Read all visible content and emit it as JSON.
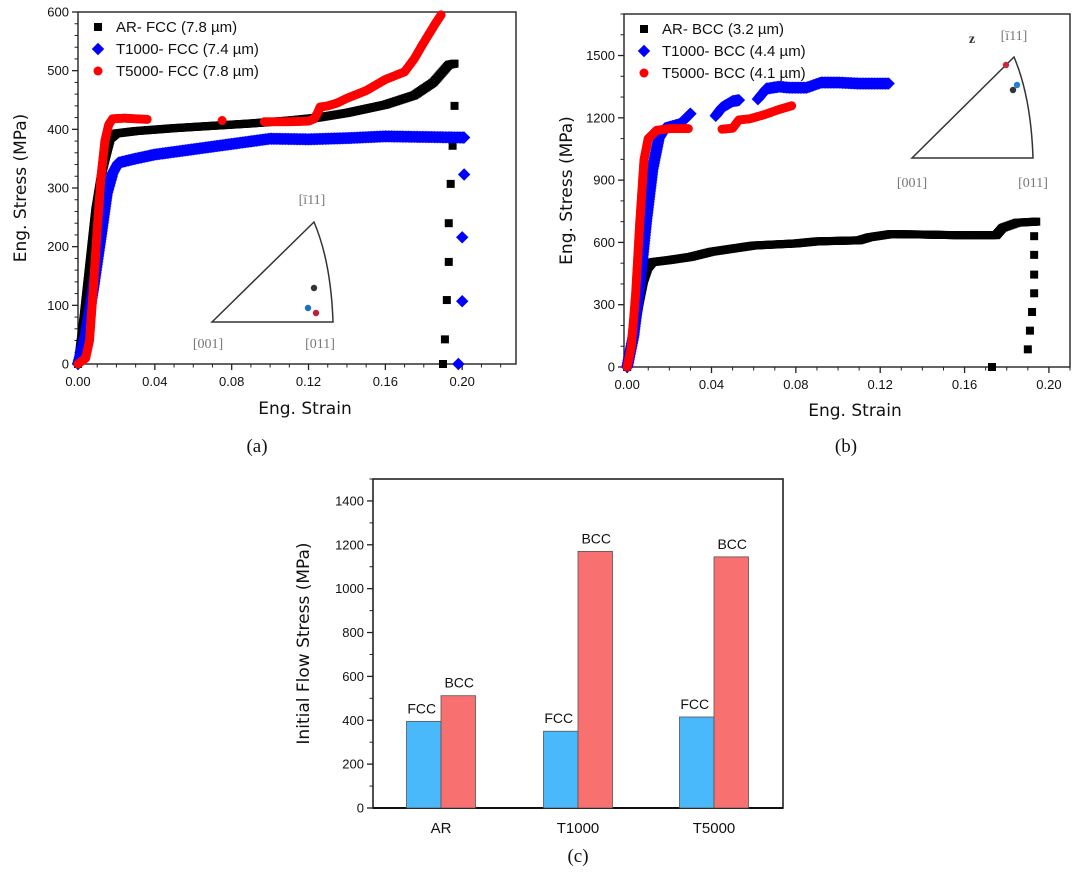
{
  "chart_data": [
    {
      "id": "a",
      "type": "scatter",
      "panel_label": "(a)",
      "title": "",
      "xlabel": "Eng. Strain",
      "ylabel": "Eng. Stress (MPa)",
      "xlim": [
        0,
        0.228
      ],
      "ylim": [
        0,
        600
      ],
      "xticks": [
        0.0,
        0.04,
        0.08,
        0.12,
        0.16,
        0.2
      ],
      "xtick_labels": [
        "0.00",
        "0.04",
        "0.08",
        "0.12",
        "0.16",
        "0.20"
      ],
      "xminor_step": 0.01,
      "yticks": [
        0,
        100,
        200,
        300,
        400,
        500,
        600
      ],
      "ytick_labels": [
        "0",
        "100",
        "200",
        "300",
        "400",
        "500",
        "600"
      ],
      "yminor_step": 20,
      "legend_position": "top-left",
      "series": [
        {
          "name": "AR- FCC (7.8 µm)",
          "marker": "square",
          "color": "#000000",
          "curve": [
            [
              0.0,
              0
            ],
            [
              0.003,
              80
            ],
            [
              0.006,
              170
            ],
            [
              0.009,
              260
            ],
            [
              0.012,
              320
            ],
            [
              0.015,
              360
            ],
            [
              0.017,
              385
            ],
            [
              0.02,
              393
            ],
            [
              0.03,
              397
            ],
            [
              0.05,
              402
            ],
            [
              0.07,
              406
            ],
            [
              0.09,
              410
            ],
            [
              0.11,
              415
            ],
            [
              0.125,
              420
            ],
            [
              0.14,
              428
            ],
            [
              0.16,
              442
            ],
            [
              0.175,
              458
            ],
            [
              0.185,
              480
            ],
            [
              0.193,
              510
            ],
            [
              0.196,
              512
            ]
          ],
          "fracture_points": [
            [
              0.196,
              440
            ],
            [
              0.195,
              372
            ],
            [
              0.194,
              307
            ],
            [
              0.193,
              240
            ],
            [
              0.193,
              174
            ],
            [
              0.192,
              109
            ],
            [
              0.191,
              42
            ],
            [
              0.19,
              0
            ]
          ]
        },
        {
          "name": "T1000- FCC (7.4 µm)",
          "marker": "diamond",
          "color": "#0000ff",
          "curve": [
            [
              0.0,
              0
            ],
            [
              0.004,
              50
            ],
            [
              0.008,
              130
            ],
            [
              0.012,
              220
            ],
            [
              0.015,
              290
            ],
            [
              0.018,
              325
            ],
            [
              0.021,
              343
            ],
            [
              0.03,
              350
            ],
            [
              0.04,
              357
            ],
            [
              0.06,
              366
            ],
            [
              0.08,
              375
            ],
            [
              0.1,
              384
            ],
            [
              0.12,
              383
            ],
            [
              0.14,
              385
            ],
            [
              0.16,
              388
            ],
            [
              0.18,
              387
            ],
            [
              0.2,
              386
            ],
            [
              0.201,
              386
            ]
          ],
          "fracture_points": [
            [
              0.201,
              323
            ],
            [
              0.2,
              216
            ],
            [
              0.2,
              107
            ],
            [
              0.198,
              0
            ]
          ]
        },
        {
          "name": "T5000- FCC (7.8 µm)",
          "marker": "circle",
          "color": "#ff0000",
          "curve": [
            [
              0.0,
              0
            ],
            [
              0.004,
              10
            ],
            [
              0.006,
              40
            ],
            [
              0.008,
              130
            ],
            [
              0.01,
              230
            ],
            [
              0.012,
              320
            ],
            [
              0.014,
              380
            ],
            [
              0.016,
              408
            ],
            [
              0.018,
              418
            ],
            [
              0.024,
              419
            ],
            [
              0.03,
              418
            ],
            [
              0.036,
              417
            ]
          ],
          "curve2": [
            [
              0.075,
              415
            ]
          ],
          "curve3": [
            [
              0.097,
              413
            ],
            [
              0.11,
              413
            ],
            [
              0.12,
              414
            ],
            [
              0.123,
              418
            ],
            [
              0.125,
              430
            ],
            [
              0.126,
              438
            ],
            [
              0.13,
              440
            ],
            [
              0.135,
              445
            ],
            [
              0.14,
              453
            ],
            [
              0.15,
              466
            ],
            [
              0.16,
              485
            ],
            [
              0.17,
              498
            ],
            [
              0.175,
              520
            ],
            [
              0.18,
              548
            ],
            [
              0.186,
              580
            ],
            [
              0.189,
              595
            ]
          ]
        }
      ],
      "inset": {
        "labels": [
          "[ī11]",
          "[001]",
          "[011]"
        ],
        "points": [
          {
            "name": "AR",
            "color": "#333333"
          },
          {
            "name": "T1000",
            "color": "#1f6fc4"
          },
          {
            "name": "T5000",
            "color": "#c0203a"
          }
        ]
      }
    },
    {
      "id": "b",
      "type": "scatter",
      "panel_label": "(b)",
      "title": "",
      "xlabel": "Eng. Strain",
      "ylabel": "Eng. Stress (MPa)",
      "xlim": [
        -0.0015,
        0.21
      ],
      "ylim": [
        0,
        1700
      ],
      "xticks": [
        0.0,
        0.04,
        0.08,
        0.12,
        0.16,
        0.2
      ],
      "xtick_labels": [
        "0.00",
        "0.04",
        "0.08",
        "0.12",
        "0.16",
        "0.20"
      ],
      "xminor_step": 0.01,
      "yticks": [
        0,
        300,
        600,
        900,
        1200,
        1500
      ],
      "ytick_labels": [
        "0",
        "300",
        "600",
        "900",
        "1200",
        "1500"
      ],
      "yminor_step": 100,
      "legend_position": "top-left",
      "series": [
        {
          "name": "AR- BCC (3.2 µm)",
          "marker": "square",
          "color": "#000000",
          "curve": [
            [
              0.0,
              0
            ],
            [
              0.003,
              150
            ],
            [
              0.006,
              320
            ],
            [
              0.008,
              420
            ],
            [
              0.01,
              480
            ],
            [
              0.012,
              505
            ],
            [
              0.02,
              515
            ],
            [
              0.03,
              530
            ],
            [
              0.04,
              555
            ],
            [
              0.05,
              570
            ],
            [
              0.06,
              585
            ],
            [
              0.08,
              595
            ],
            [
              0.09,
              605
            ],
            [
              0.11,
              610
            ],
            [
              0.115,
              625
            ],
            [
              0.125,
              640
            ],
            [
              0.14,
              638
            ],
            [
              0.155,
              635
            ],
            [
              0.175,
              635
            ],
            [
              0.178,
              670
            ],
            [
              0.185,
              695
            ],
            [
              0.194,
              700
            ]
          ],
          "fracture_points": [
            [
              0.193,
              630
            ],
            [
              0.193,
              540
            ],
            [
              0.193,
              445
            ],
            [
              0.193,
              355
            ],
            [
              0.192,
              265
            ],
            [
              0.191,
              175
            ],
            [
              0.19,
              85
            ],
            [
              0.173,
              0
            ]
          ]
        },
        {
          "name": "T1000- BCC (4.4 µm)",
          "marker": "diamond",
          "color": "#0000ff",
          "curve": [
            [
              0.0,
              0
            ],
            [
              0.003,
              150
            ],
            [
              0.006,
              400
            ],
            [
              0.009,
              700
            ],
            [
              0.012,
              950
            ],
            [
              0.015,
              1100
            ],
            [
              0.018,
              1150
            ],
            [
              0.025,
              1170
            ],
            [
              0.03,
              1220
            ]
          ],
          "curve2": [
            [
              0.042,
              1210
            ],
            [
              0.045,
              1250
            ],
            [
              0.05,
              1280
            ],
            [
              0.053,
              1285
            ]
          ],
          "curve3": [
            [
              0.062,
              1290
            ],
            [
              0.066,
              1340
            ],
            [
              0.072,
              1350
            ],
            [
              0.077,
              1345
            ],
            [
              0.085,
              1345
            ],
            [
              0.092,
              1370
            ],
            [
              0.1,
              1370
            ],
            [
              0.11,
              1365
            ],
            [
              0.118,
              1365
            ],
            [
              0.124,
              1365
            ]
          ]
        },
        {
          "name": "T5000- BCC (4.1 µm)",
          "marker": "circle",
          "color": "#ff0000",
          "curve": [
            [
              0.0,
              0
            ],
            [
              0.002,
              100
            ],
            [
              0.004,
              350
            ],
            [
              0.006,
              700
            ],
            [
              0.008,
              1000
            ],
            [
              0.01,
              1100
            ],
            [
              0.014,
              1140
            ],
            [
              0.02,
              1148
            ],
            [
              0.029,
              1148
            ]
          ],
          "curve2": [
            [
              0.045,
              1145
            ],
            [
              0.05,
              1150
            ],
            [
              0.053,
              1190
            ],
            [
              0.058,
              1195
            ],
            [
              0.065,
              1215
            ],
            [
              0.072,
              1240
            ],
            [
              0.078,
              1258
            ]
          ]
        }
      ],
      "inset": {
        "axis_label": "z",
        "labels": [
          "[ī11]",
          "[001]",
          "[011]"
        ],
        "points": [
          {
            "name": "T5000",
            "color": "#d0263c"
          },
          {
            "name": "T1000",
            "color": "#1f7fd4"
          },
          {
            "name": "AR",
            "color": "#333333"
          }
        ]
      }
    },
    {
      "id": "c",
      "type": "bar",
      "panel_label": "(c)",
      "title": "",
      "xlabel": "",
      "ylabel": "Initial Flow Stress (MPa)",
      "ylim": [
        0,
        1500
      ],
      "yticks": [
        0,
        200,
        400,
        600,
        800,
        1000,
        1200,
        1400
      ],
      "ytick_labels": [
        "0",
        "200",
        "400",
        "600",
        "800",
        "1000",
        "1200",
        "1400"
      ],
      "yminor_step": 100,
      "categories": [
        "AR",
        "T1000",
        "T5000"
      ],
      "series": [
        {
          "name": "FCC",
          "color": "#4ab9fb",
          "values": [
            395,
            350,
            415
          ]
        },
        {
          "name": "BCC",
          "color": "#f87070",
          "values": [
            512,
            1170,
            1145
          ]
        }
      ],
      "legend_position": "none"
    }
  ]
}
